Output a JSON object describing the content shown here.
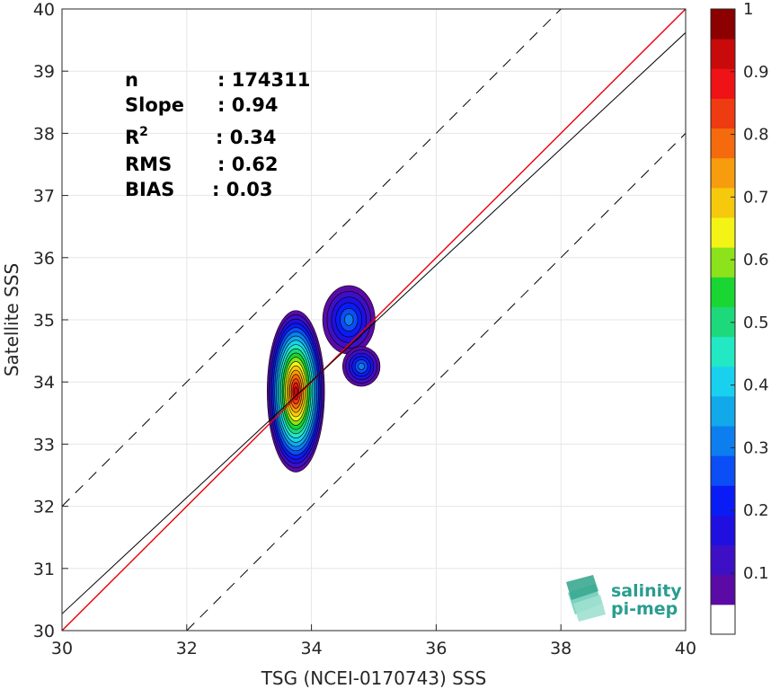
{
  "chart_data": {
    "type": "contour-scatter",
    "xlabel": "TSG (NCEI-0170743) SSS",
    "ylabel": "Satellite SSS",
    "xlim": [
      30,
      40
    ],
    "ylim": [
      30,
      40
    ],
    "xticks": [
      "30",
      "32",
      "34",
      "36",
      "38",
      "40"
    ],
    "yticks": [
      "30",
      "31",
      "32",
      "33",
      "34",
      "35",
      "36",
      "37",
      "38",
      "39",
      "40"
    ],
    "grid": true,
    "reference_lines": [
      {
        "name": "identity",
        "slope": 1,
        "intercept": 0,
        "color": "#e8000b",
        "style": "solid"
      },
      {
        "name": "fit",
        "slope": 0.94,
        "x_at_30": 30.27,
        "x_at_40": 39.62,
        "color": "#000000",
        "style": "solid"
      },
      {
        "name": "upper",
        "slope": 1,
        "intercept": 2,
        "color": "#000000",
        "style": "dashed"
      },
      {
        "name": "lower",
        "slope": 1,
        "intercept": -2,
        "color": "#000000",
        "style": "dashed"
      }
    ],
    "stats": [
      {
        "label": "n",
        "value": ": 174311"
      },
      {
        "label": "Slope",
        "value": ": 0.94"
      },
      {
        "label": "R",
        "sup": "2",
        "value": ": 0.34"
      },
      {
        "label": "RMS",
        "value": ": 0.62"
      },
      {
        "label": "BIAS",
        "value": ": 0.03"
      }
    ],
    "density_peak": {
      "x": 33.75,
      "y": 33.85
    },
    "secondary_peaks": [
      {
        "x": 34.6,
        "y": 35.0
      },
      {
        "x": 34.8,
        "y": 34.25
      }
    ],
    "colorbar": {
      "ticks": [
        "0.1",
        "0.2",
        "0.3",
        "0.4",
        "0.5",
        "0.6",
        "0.7",
        "0.8",
        "0.9",
        "1"
      ],
      "tick_values": [
        0.1,
        0.2,
        0.3,
        0.4,
        0.5,
        0.6,
        0.7,
        0.8,
        0.9,
        1.0
      ],
      "range": [
        0,
        1
      ],
      "colors": [
        "#ffffff",
        "#5b0aa6",
        "#3d10c6",
        "#1f10e0",
        "#0a1cf5",
        "#0c4ef5",
        "#0c7ef0",
        "#11a9ea",
        "#1ad0ef",
        "#22e8c4",
        "#1dd97c",
        "#19d633",
        "#8ce21b",
        "#f4f316",
        "#f6c90c",
        "#f79c0c",
        "#f46a0c",
        "#ee3b12",
        "#ef1216",
        "#c90a0a",
        "#8c0000"
      ]
    }
  },
  "logo": {
    "line1": "salinity",
    "line2": "pi-mep",
    "color": "#2a9d8f"
  }
}
